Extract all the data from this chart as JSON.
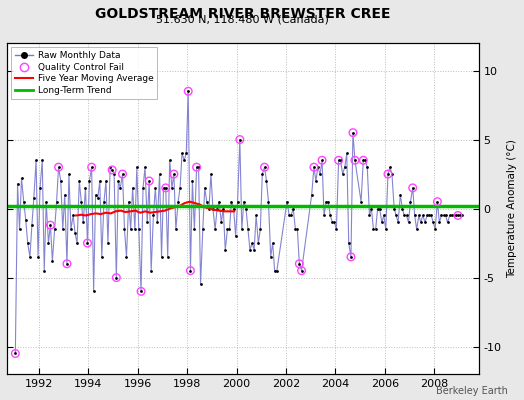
{
  "title": "GOLDSTREAM RIVER BREWSTER CREE",
  "subtitle": "51.630 N, 118.480 W (Canada)",
  "ylabel": "Temperature Anomaly (°C)",
  "credit": "Berkeley Earth",
  "xlim": [
    1990.7,
    2009.8
  ],
  "ylim": [
    -12,
    12
  ],
  "yticks": [
    -10,
    -5,
    0,
    5,
    10
  ],
  "xticks": [
    1992,
    1994,
    1996,
    1998,
    2000,
    2002,
    2004,
    2006,
    2008
  ],
  "bg_color": "#e8e8e8",
  "plot_bg": "#ffffff",
  "line_color": "#7777cc",
  "dot_color": "#000000",
  "ma_color": "#ff0000",
  "trend_color": "#00bb00",
  "qc_color": "#ff44ff",
  "raw_data": [
    [
      1991.04,
      -10.5
    ],
    [
      1991.13,
      1.8
    ],
    [
      1991.21,
      -1.5
    ],
    [
      1991.29,
      2.2
    ],
    [
      1991.38,
      0.5
    ],
    [
      1991.46,
      -0.8
    ],
    [
      1991.54,
      -2.5
    ],
    [
      1991.63,
      -3.5
    ],
    [
      1991.71,
      -1.2
    ],
    [
      1991.79,
      0.8
    ],
    [
      1991.88,
      3.5
    ],
    [
      1991.96,
      -3.5
    ],
    [
      1992.04,
      1.5
    ],
    [
      1992.13,
      3.5
    ],
    [
      1992.21,
      -4.5
    ],
    [
      1992.29,
      0.5
    ],
    [
      1992.38,
      -2.5
    ],
    [
      1992.46,
      -1.2
    ],
    [
      1992.54,
      -3.8
    ],
    [
      1992.63,
      -1.5
    ],
    [
      1992.71,
      0.5
    ],
    [
      1992.79,
      3.0
    ],
    [
      1992.88,
      2.0
    ],
    [
      1992.96,
      -1.5
    ],
    [
      1993.04,
      1.0
    ],
    [
      1993.13,
      -4.0
    ],
    [
      1993.21,
      2.5
    ],
    [
      1993.29,
      -1.5
    ],
    [
      1993.38,
      -0.5
    ],
    [
      1993.46,
      -1.8
    ],
    [
      1993.54,
      -2.5
    ],
    [
      1993.63,
      2.0
    ],
    [
      1993.71,
      0.5
    ],
    [
      1993.79,
      -1.0
    ],
    [
      1993.88,
      1.5
    ],
    [
      1993.96,
      -2.5
    ],
    [
      1994.04,
      2.0
    ],
    [
      1994.13,
      3.0
    ],
    [
      1994.21,
      -6.0
    ],
    [
      1994.29,
      1.0
    ],
    [
      1994.38,
      0.8
    ],
    [
      1994.46,
      2.0
    ],
    [
      1994.54,
      -3.5
    ],
    [
      1994.63,
      0.5
    ],
    [
      1994.71,
      2.0
    ],
    [
      1994.79,
      -2.5
    ],
    [
      1994.88,
      3.0
    ],
    [
      1994.96,
      2.8
    ],
    [
      1995.04,
      2.5
    ],
    [
      1995.13,
      -5.0
    ],
    [
      1995.21,
      2.0
    ],
    [
      1995.29,
      1.5
    ],
    [
      1995.38,
      2.5
    ],
    [
      1995.46,
      -1.5
    ],
    [
      1995.54,
      -3.5
    ],
    [
      1995.63,
      0.5
    ],
    [
      1995.71,
      -1.5
    ],
    [
      1995.79,
      1.5
    ],
    [
      1995.88,
      -1.5
    ],
    [
      1995.96,
      3.0
    ],
    [
      1996.04,
      -1.5
    ],
    [
      1996.13,
      -6.0
    ],
    [
      1996.21,
      1.5
    ],
    [
      1996.29,
      3.0
    ],
    [
      1996.38,
      -1.0
    ],
    [
      1996.46,
      2.0
    ],
    [
      1996.54,
      -4.5
    ],
    [
      1996.63,
      -0.5
    ],
    [
      1996.71,
      1.5
    ],
    [
      1996.79,
      -1.0
    ],
    [
      1996.88,
      2.5
    ],
    [
      1996.96,
      -3.5
    ],
    [
      1997.04,
      1.5
    ],
    [
      1997.13,
      1.5
    ],
    [
      1997.21,
      -3.5
    ],
    [
      1997.29,
      3.5
    ],
    [
      1997.38,
      1.5
    ],
    [
      1997.46,
      2.5
    ],
    [
      1997.54,
      -1.5
    ],
    [
      1997.63,
      0.5
    ],
    [
      1997.71,
      1.5
    ],
    [
      1997.79,
      4.0
    ],
    [
      1997.88,
      3.5
    ],
    [
      1997.96,
      4.0
    ],
    [
      1998.04,
      8.5
    ],
    [
      1998.13,
      -4.5
    ],
    [
      1998.21,
      2.0
    ],
    [
      1998.29,
      -1.5
    ],
    [
      1998.38,
      3.0
    ],
    [
      1998.46,
      3.0
    ],
    [
      1998.54,
      -5.5
    ],
    [
      1998.63,
      -1.5
    ],
    [
      1998.71,
      1.5
    ],
    [
      1998.79,
      0.5
    ],
    [
      1998.88,
      0.0
    ],
    [
      1998.96,
      2.5
    ],
    [
      1999.04,
      0.0
    ],
    [
      1999.13,
      -1.5
    ],
    [
      1999.21,
      0.0
    ],
    [
      1999.29,
      0.5
    ],
    [
      1999.38,
      -1.0
    ],
    [
      1999.46,
      0.0
    ],
    [
      1999.54,
      -3.0
    ],
    [
      1999.63,
      -1.5
    ],
    [
      1999.71,
      -1.5
    ],
    [
      1999.79,
      0.5
    ],
    [
      1999.88,
      0.0
    ],
    [
      1999.96,
      -2.0
    ],
    [
      2000.04,
      0.5
    ],
    [
      2000.13,
      5.0
    ],
    [
      2000.21,
      -1.5
    ],
    [
      2000.29,
      0.5
    ],
    [
      2000.38,
      0.0
    ],
    [
      2000.46,
      -1.5
    ],
    [
      2000.54,
      -3.0
    ],
    [
      2000.63,
      -2.5
    ],
    [
      2000.71,
      -3.0
    ],
    [
      2000.79,
      -0.5
    ],
    [
      2000.88,
      -2.5
    ],
    [
      2000.96,
      -1.5
    ],
    [
      2001.04,
      2.5
    ],
    [
      2001.13,
      3.0
    ],
    [
      2001.21,
      2.0
    ],
    [
      2001.29,
      0.5
    ],
    [
      2001.38,
      -3.5
    ],
    [
      2001.46,
      -2.5
    ],
    [
      2001.54,
      -4.5
    ],
    [
      2001.63,
      -4.5
    ],
    [
      2002.04,
      0.5
    ],
    [
      2002.13,
      -0.5
    ],
    [
      2002.21,
      -0.5
    ],
    [
      2002.29,
      0.0
    ],
    [
      2002.38,
      -1.5
    ],
    [
      2002.46,
      -1.5
    ],
    [
      2002.54,
      -4.0
    ],
    [
      2002.63,
      -4.5
    ],
    [
      2003.04,
      1.0
    ],
    [
      2003.13,
      3.0
    ],
    [
      2003.21,
      2.0
    ],
    [
      2003.29,
      3.0
    ],
    [
      2003.38,
      2.5
    ],
    [
      2003.46,
      3.5
    ],
    [
      2003.54,
      -0.5
    ],
    [
      2003.63,
      0.5
    ],
    [
      2003.71,
      0.5
    ],
    [
      2003.79,
      -0.5
    ],
    [
      2003.88,
      -1.0
    ],
    [
      2003.96,
      -1.0
    ],
    [
      2004.04,
      -1.5
    ],
    [
      2004.13,
      3.5
    ],
    [
      2004.21,
      3.5
    ],
    [
      2004.29,
      2.5
    ],
    [
      2004.38,
      3.0
    ],
    [
      2004.46,
      4.0
    ],
    [
      2004.54,
      -2.5
    ],
    [
      2004.63,
      -3.5
    ],
    [
      2004.71,
      5.5
    ],
    [
      2004.79,
      3.5
    ],
    [
      2005.04,
      0.5
    ],
    [
      2005.13,
      3.5
    ],
    [
      2005.21,
      3.5
    ],
    [
      2005.29,
      3.0
    ],
    [
      2005.38,
      -0.5
    ],
    [
      2005.46,
      0.0
    ],
    [
      2005.54,
      -1.5
    ],
    [
      2005.63,
      -1.5
    ],
    [
      2005.71,
      0.0
    ],
    [
      2005.79,
      0.0
    ],
    [
      2005.88,
      -1.0
    ],
    [
      2005.96,
      -0.5
    ],
    [
      2006.04,
      -1.5
    ],
    [
      2006.13,
      2.5
    ],
    [
      2006.21,
      3.0
    ],
    [
      2006.29,
      2.5
    ],
    [
      2006.38,
      0.0
    ],
    [
      2006.46,
      -0.5
    ],
    [
      2006.54,
      -1.0
    ],
    [
      2006.63,
      1.0
    ],
    [
      2006.71,
      0.0
    ],
    [
      2006.79,
      -0.5
    ],
    [
      2006.88,
      -0.5
    ],
    [
      2006.96,
      -1.0
    ],
    [
      2007.04,
      0.5
    ],
    [
      2007.13,
      1.5
    ],
    [
      2007.21,
      -0.5
    ],
    [
      2007.29,
      -1.5
    ],
    [
      2007.38,
      -0.5
    ],
    [
      2007.46,
      -1.0
    ],
    [
      2007.54,
      -0.5
    ],
    [
      2007.63,
      -1.0
    ],
    [
      2007.71,
      -0.5
    ],
    [
      2007.79,
      -0.5
    ],
    [
      2007.88,
      -0.5
    ],
    [
      2007.96,
      -1.0
    ],
    [
      2008.04,
      -1.5
    ],
    [
      2008.13,
      0.5
    ],
    [
      2008.21,
      -1.0
    ],
    [
      2008.29,
      -0.5
    ],
    [
      2008.38,
      -0.5
    ],
    [
      2008.46,
      -0.5
    ],
    [
      2008.54,
      -1.0
    ],
    [
      2008.63,
      -0.5
    ],
    [
      2008.71,
      -0.5
    ],
    [
      2008.79,
      -0.5
    ],
    [
      2008.88,
      -0.5
    ],
    [
      2008.96,
      -0.5
    ],
    [
      2009.04,
      -0.5
    ],
    [
      2009.13,
      -0.5
    ]
  ],
  "qc_fail": [
    [
      1991.04,
      -10.5
    ],
    [
      1992.46,
      -1.2
    ],
    [
      1992.79,
      3.0
    ],
    [
      1993.13,
      -4.0
    ],
    [
      1993.96,
      -2.5
    ],
    [
      1994.13,
      3.0
    ],
    [
      1994.96,
      2.8
    ],
    [
      1995.13,
      -5.0
    ],
    [
      1995.38,
      2.5
    ],
    [
      1996.13,
      -6.0
    ],
    [
      1996.46,
      2.0
    ],
    [
      1997.13,
      1.5
    ],
    [
      1997.46,
      2.5
    ],
    [
      1998.04,
      8.5
    ],
    [
      1998.13,
      -4.5
    ],
    [
      1998.38,
      3.0
    ],
    [
      2000.13,
      5.0
    ],
    [
      2001.13,
      3.0
    ],
    [
      2002.54,
      -4.0
    ],
    [
      2002.63,
      -4.5
    ],
    [
      2003.13,
      3.0
    ],
    [
      2003.46,
      3.5
    ],
    [
      2004.13,
      3.5
    ],
    [
      2004.63,
      -3.5
    ],
    [
      2004.71,
      5.5
    ],
    [
      2004.79,
      3.5
    ],
    [
      2005.13,
      3.5
    ],
    [
      2006.13,
      2.5
    ],
    [
      2007.13,
      1.5
    ],
    [
      2008.13,
      0.5
    ],
    [
      2008.96,
      -0.5
    ]
  ],
  "moving_avg": [
    [
      1993.5,
      -0.5
    ],
    [
      1993.7,
      -0.45
    ],
    [
      1993.9,
      -0.5
    ],
    [
      1994.1,
      -0.4
    ],
    [
      1994.3,
      -0.35
    ],
    [
      1994.5,
      -0.4
    ],
    [
      1994.7,
      -0.3
    ],
    [
      1994.9,
      -0.35
    ],
    [
      1995.1,
      -0.2
    ],
    [
      1995.3,
      -0.15
    ],
    [
      1995.5,
      -0.25
    ],
    [
      1995.7,
      -0.2
    ],
    [
      1995.9,
      -0.15
    ],
    [
      1996.1,
      -0.3
    ],
    [
      1996.3,
      -0.2
    ],
    [
      1996.5,
      -0.3
    ],
    [
      1996.7,
      -0.25
    ],
    [
      1996.9,
      -0.2
    ],
    [
      1997.1,
      -0.15
    ],
    [
      1997.3,
      0.0
    ],
    [
      1997.5,
      0.1
    ],
    [
      1997.7,
      0.2
    ],
    [
      1997.9,
      0.4
    ],
    [
      1998.1,
      0.5
    ],
    [
      1998.3,
      0.4
    ],
    [
      1998.5,
      0.3
    ],
    [
      1998.7,
      0.1
    ],
    [
      1998.9,
      0.0
    ],
    [
      1999.1,
      -0.1
    ],
    [
      1999.3,
      -0.15
    ],
    [
      1999.5,
      -0.2
    ],
    [
      1999.7,
      -0.2
    ],
    [
      1999.9,
      -0.2
    ]
  ],
  "trend_x": [
    1990.7,
    2009.8
  ],
  "trend_y": [
    0.15,
    0.15
  ]
}
